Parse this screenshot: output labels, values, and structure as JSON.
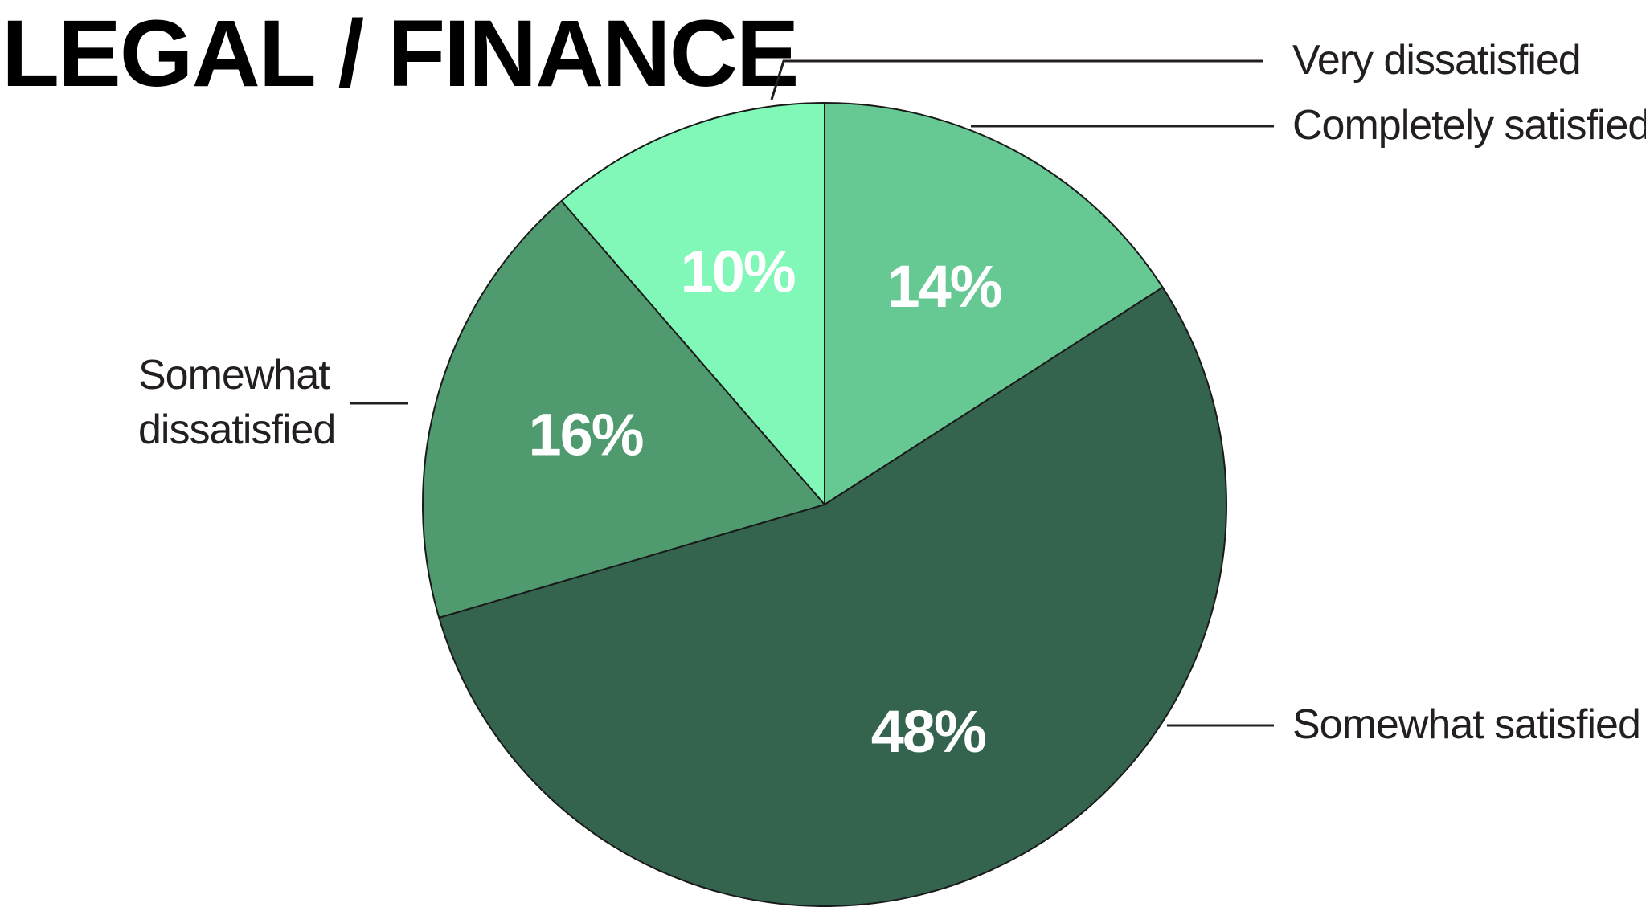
{
  "chart_data": {
    "type": "pie",
    "title": "LEGAL / FINANCE",
    "slices": [
      {
        "category": "Completely satisfied",
        "value": 14,
        "label": "14%",
        "color": "#66c892"
      },
      {
        "category": "Somewhat satisfied",
        "value": 48,
        "label": "48%",
        "color": "#34644d"
      },
      {
        "category": "Somewhat dissatisfied",
        "value": 16,
        "label": "16%",
        "color": "#4f9a6e"
      },
      {
        "category": "Very dissatisfied",
        "value": 10,
        "label": "10%",
        "color": "#81f8b7"
      }
    ],
    "category_label_lines": {
      "Completely satisfied": [
        "Completely satisfied"
      ],
      "Somewhat satisfied": [
        "Somewhat satisfied"
      ],
      "Somewhat dissatisfied": [
        "Somewhat",
        "dissatisfied"
      ],
      "Very dissatisfied": [
        "Very dissatisfied"
      ]
    },
    "start": "12 o'clock",
    "direction": "clockwise",
    "legend": "none"
  }
}
